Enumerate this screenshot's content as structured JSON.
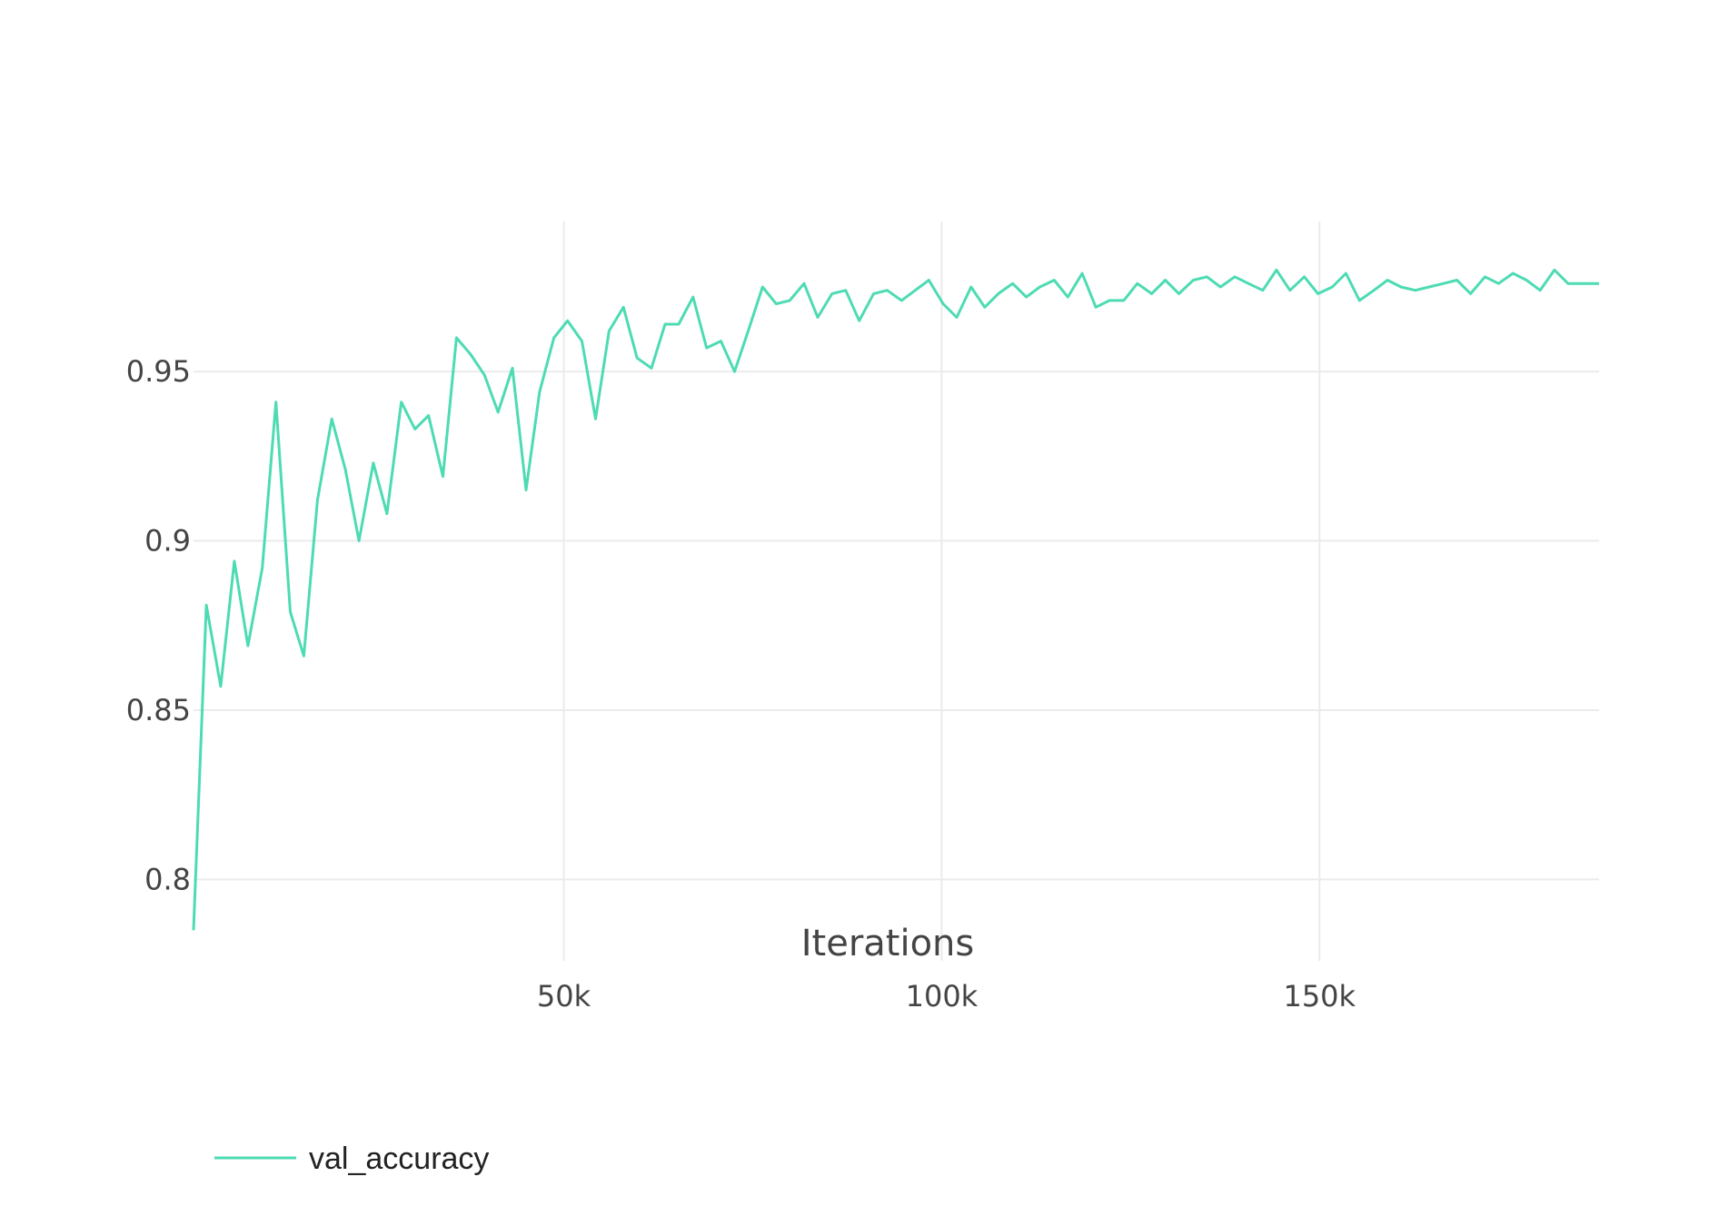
{
  "chart_data": {
    "type": "line",
    "title": "",
    "xlabel": "Iterations",
    "ylabel": "",
    "xlim": [
      1000,
      187000
    ],
    "ylim": [
      0.784,
      0.9943
    ],
    "grid": true,
    "legend_position": "bottom-left",
    "x_ticks": [
      {
        "value": 50000,
        "label": "50k"
      },
      {
        "value": 100000,
        "label": "100k"
      },
      {
        "value": 150000,
        "label": "150k"
      }
    ],
    "y_ticks": [
      {
        "value": 0.8,
        "label": "0.8"
      },
      {
        "value": 0.85,
        "label": "0.85"
      },
      {
        "value": 0.9,
        "label": "0.9"
      },
      {
        "value": 0.95,
        "label": "0.95"
      }
    ],
    "colors": {
      "series": "#4ddbb3",
      "grid": "#ebebeb",
      "text": "#444444"
    },
    "series": [
      {
        "name": "val_accuracy",
        "x": [
          1000,
          2700,
          4600,
          6400,
          8200,
          10100,
          11900,
          13800,
          15600,
          17400,
          19300,
          21100,
          22900,
          24800,
          26600,
          28500,
          30300,
          32100,
          34000,
          35800,
          37700,
          39500,
          41300,
          43200,
          45000,
          46800,
          48700,
          50500,
          52400,
          54200,
          56000,
          57900,
          59700,
          61600,
          63400,
          65200,
          67100,
          68900,
          70800,
          72600,
          74400,
          76300,
          78100,
          79900,
          81800,
          83600,
          85500,
          87300,
          89100,
          91000,
          92800,
          94700,
          96500,
          98300,
          100200,
          102000,
          103900,
          105700,
          107500,
          109400,
          111200,
          113000,
          114900,
          116700,
          118600,
          120400,
          122200,
          124100,
          125900,
          127800,
          129600,
          131400,
          133300,
          135100,
          136900,
          138800,
          140600,
          142500,
          144300,
          146100,
          148000,
          149800,
          151700,
          153500,
          155300,
          157200,
          159000,
          160800,
          162700,
          164500,
          166400,
          168200,
          170000,
          171900,
          173700,
          175600,
          177400,
          179200,
          181100,
          182900,
          184700,
          186600,
          187000
        ],
        "values": [
          0.785,
          0.881,
          0.857,
          0.894,
          0.869,
          0.892,
          0.941,
          0.879,
          0.866,
          0.912,
          0.936,
          0.921,
          0.9,
          0.923,
          0.908,
          0.941,
          0.933,
          0.937,
          0.919,
          0.96,
          0.955,
          0.949,
          0.938,
          0.951,
          0.915,
          0.944,
          0.96,
          0.965,
          0.959,
          0.936,
          0.962,
          0.969,
          0.954,
          0.951,
          0.964,
          0.964,
          0.972,
          0.957,
          0.959,
          0.95,
          0.962,
          0.975,
          0.97,
          0.971,
          0.976,
          0.966,
          0.973,
          0.974,
          0.965,
          0.973,
          0.974,
          0.971,
          0.974,
          0.977,
          0.97,
          0.966,
          0.975,
          0.969,
          0.973,
          0.976,
          0.972,
          0.975,
          0.977,
          0.972,
          0.979,
          0.969,
          0.971,
          0.971,
          0.976,
          0.973,
          0.977,
          0.973,
          0.977,
          0.978,
          0.975,
          0.978,
          0.976,
          0.974,
          0.98,
          0.974,
          0.978,
          0.973,
          0.975,
          0.979,
          0.971,
          0.974,
          0.977,
          0.975,
          0.974,
          0.975,
          0.976,
          0.977,
          0.973,
          0.978,
          0.976,
          0.979,
          0.977,
          0.974,
          0.98,
          0.976,
          0.976,
          0.976,
          0.976
        ]
      }
    ]
  }
}
